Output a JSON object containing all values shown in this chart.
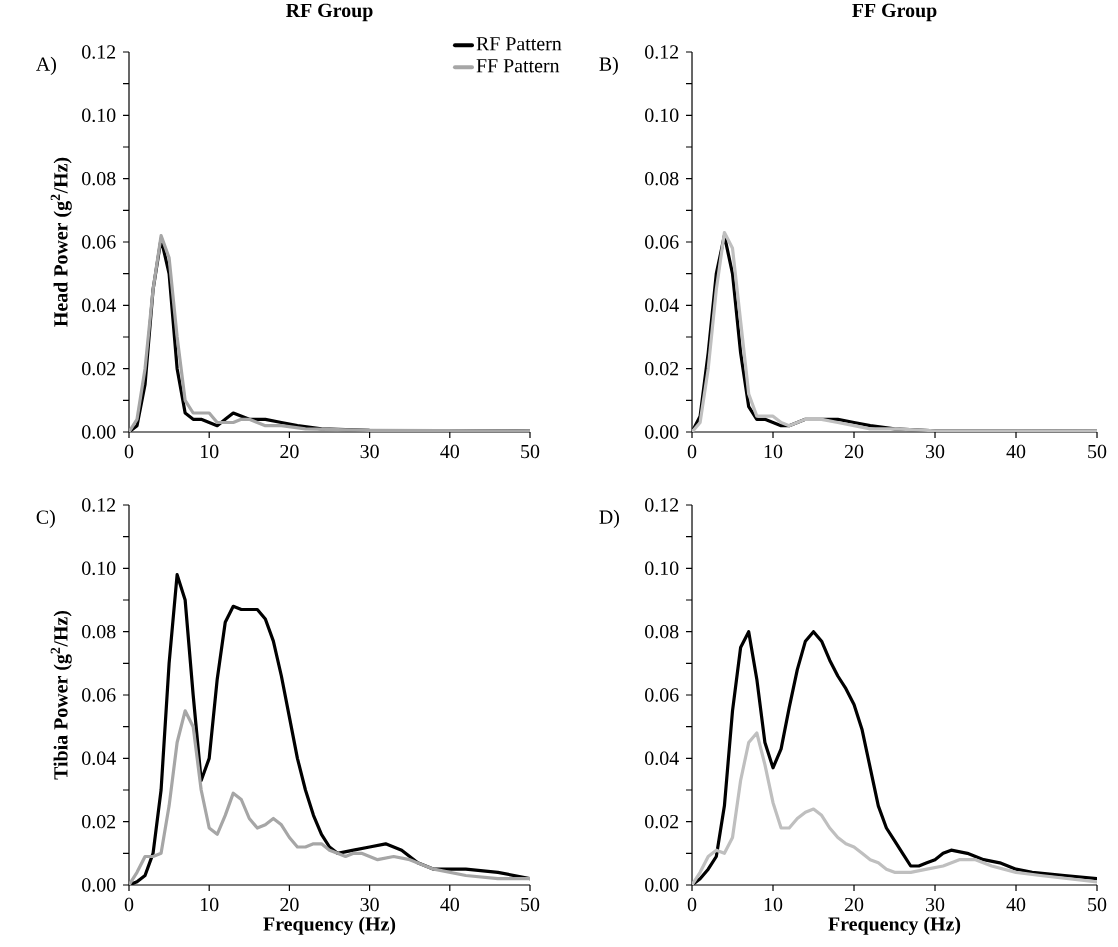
{
  "chart_data": [
    {
      "type": "line",
      "title": "RF Group",
      "ylabel": "Head Power (g$^{2}$/Hz)",
      "annotations": [
        "A)"
      ],
      "legend": "top right",
      "xlim": [
        0,
        50
      ],
      "xticks": [
        0,
        10,
        20,
        30,
        40,
        50
      ],
      "ylim": [
        0,
        0.12
      ],
      "yticks": [
        {
          "value": 0,
          "label": "0.00"
        },
        {
          "value": 0.01,
          "label": null
        },
        {
          "value": 0.02,
          "label": "0.02"
        },
        {
          "value": 0.03,
          "label": null
        },
        {
          "value": 0.04,
          "label": "0.04"
        },
        {
          "value": 0.05,
          "label": null
        },
        {
          "value": 0.06,
          "label": "0.06"
        },
        {
          "value": 0.07,
          "label": null
        },
        {
          "value": 0.08,
          "label": "0.08"
        },
        {
          "value": 0.09,
          "label": null
        },
        {
          "value": 0.1,
          "label": "0.10"
        },
        {
          "value": 0.11,
          "label": null
        },
        {
          "value": 0.12,
          "label": "0.12"
        }
      ],
      "series": [
        {
          "name": "RF Pattern",
          "color": "#000000",
          "x": [
            0,
            1,
            2,
            3,
            4,
            5,
            6,
            7,
            8,
            9,
            10,
            11,
            12,
            13,
            14,
            15,
            17,
            19,
            21,
            24,
            30,
            50
          ],
          "values": [
            0,
            0.002,
            0.015,
            0.045,
            0.061,
            0.05,
            0.02,
            0.006,
            0.004,
            0.004,
            0.003,
            0.002,
            0.004,
            0.006,
            0.005,
            0.004,
            0.004,
            0.003,
            0.002,
            0.001,
            0.0005,
            0.0003
          ]
        },
        {
          "name": "FF Pattern",
          "color": "#a6a6a6",
          "x": [
            0,
            1,
            2,
            3,
            4,
            5,
            6,
            7,
            8,
            9,
            10,
            11,
            12,
            13,
            14,
            15,
            16,
            17,
            19,
            22,
            30,
            50
          ],
          "values": [
            0,
            0.004,
            0.02,
            0.045,
            0.062,
            0.055,
            0.03,
            0.01,
            0.006,
            0.006,
            0.006,
            0.003,
            0.003,
            0.003,
            0.004,
            0.004,
            0.003,
            0.002,
            0.002,
            0.001,
            0.0005,
            0.0003
          ]
        }
      ]
    },
    {
      "type": "line",
      "title": "FF Group",
      "annotations": [
        "B)"
      ],
      "xlim": [
        0,
        50
      ],
      "xticks": [
        0,
        10,
        20,
        30,
        40,
        50
      ],
      "ylim": [
        0,
        0.12
      ],
      "yticks": [
        {
          "value": 0,
          "label": "0.00"
        },
        {
          "value": 0.01,
          "label": null
        },
        {
          "value": 0.02,
          "label": "0.02"
        },
        {
          "value": 0.03,
          "label": null
        },
        {
          "value": 0.04,
          "label": "0.04"
        },
        {
          "value": 0.05,
          "label": null
        },
        {
          "value": 0.06,
          "label": "0.06"
        },
        {
          "value": 0.07,
          "label": null
        },
        {
          "value": 0.08,
          "label": "0.08"
        },
        {
          "value": 0.09,
          "label": null
        },
        {
          "value": 0.1,
          "label": "0.10"
        },
        {
          "value": 0.11,
          "label": null
        },
        {
          "value": 0.12,
          "label": "0.12"
        }
      ],
      "series": [
        {
          "color": "#000000",
          "x": [
            0,
            1,
            2,
            3,
            4,
            5,
            6,
            7,
            8,
            9,
            10,
            11,
            12,
            13,
            14,
            16,
            18,
            20,
            22,
            25,
            30,
            50
          ],
          "values": [
            0,
            0.005,
            0.025,
            0.05,
            0.062,
            0.05,
            0.025,
            0.008,
            0.004,
            0.004,
            0.003,
            0.002,
            0.002,
            0.003,
            0.004,
            0.004,
            0.004,
            0.003,
            0.002,
            0.001,
            0.0004,
            0.0003
          ]
        },
        {
          "color": "#bfbfbf",
          "x": [
            0,
            1,
            2,
            3,
            4,
            5,
            6,
            7,
            8,
            9,
            10,
            11,
            12,
            13,
            14,
            16,
            18,
            20,
            22,
            25,
            30,
            50
          ],
          "values": [
            0,
            0.003,
            0.02,
            0.045,
            0.063,
            0.058,
            0.035,
            0.012,
            0.005,
            0.005,
            0.005,
            0.003,
            0.002,
            0.003,
            0.004,
            0.004,
            0.003,
            0.002,
            0.001,
            0.001,
            0.0004,
            0.0003
          ]
        }
      ]
    },
    {
      "type": "line",
      "xlabel": "Frequency (Hz)",
      "ylabel": "Tibia Power (g$^{2}$/Hz)",
      "annotations": [
        "C)"
      ],
      "xlim": [
        0,
        50
      ],
      "xticks": [
        0,
        10,
        20,
        30,
        40,
        50
      ],
      "ylim": [
        0,
        0.12
      ],
      "yticks": [
        {
          "value": 0,
          "label": "0.00"
        },
        {
          "value": 0.01,
          "label": null
        },
        {
          "value": 0.02,
          "label": "0.02"
        },
        {
          "value": 0.03,
          "label": null
        },
        {
          "value": 0.04,
          "label": "0.04"
        },
        {
          "value": 0.05,
          "label": null
        },
        {
          "value": 0.06,
          "label": "0.06"
        },
        {
          "value": 0.07,
          "label": null
        },
        {
          "value": 0.08,
          "label": "0.08"
        },
        {
          "value": 0.09,
          "label": null
        },
        {
          "value": 0.1,
          "label": "0.10"
        },
        {
          "value": 0.11,
          "label": null
        },
        {
          "value": 0.12,
          "label": "0.12"
        }
      ],
      "series": [
        {
          "color": "#000000",
          "x": [
            0,
            1,
            2,
            3,
            4,
            5,
            6,
            7,
            8,
            9,
            10,
            11,
            12,
            13,
            14,
            16,
            17,
            18,
            19,
            20,
            21,
            22,
            23,
            24,
            25,
            26,
            28,
            30,
            32,
            34,
            36,
            38,
            40,
            42,
            46,
            50
          ],
          "values": [
            0,
            0.001,
            0.003,
            0.01,
            0.03,
            0.07,
            0.098,
            0.09,
            0.06,
            0.033,
            0.04,
            0.065,
            0.083,
            0.088,
            0.087,
            0.087,
            0.084,
            0.077,
            0.066,
            0.053,
            0.04,
            0.03,
            0.022,
            0.016,
            0.012,
            0.01,
            0.011,
            0.012,
            0.013,
            0.011,
            0.007,
            0.005,
            0.005,
            0.005,
            0.004,
            0.002
          ]
        },
        {
          "color": "#a6a6a6",
          "x": [
            0,
            1,
            2,
            3,
            4,
            5,
            6,
            7,
            8,
            9,
            10,
            11,
            12,
            13,
            14,
            15,
            16,
            17,
            18,
            19,
            20,
            21,
            22,
            23,
            24,
            25,
            26,
            27,
            28,
            29,
            30,
            31,
            33,
            35,
            38,
            42,
            46,
            50
          ],
          "values": [
            0,
            0.004,
            0.009,
            0.009,
            0.01,
            0.025,
            0.045,
            0.055,
            0.05,
            0.03,
            0.018,
            0.016,
            0.022,
            0.029,
            0.027,
            0.021,
            0.018,
            0.019,
            0.021,
            0.019,
            0.015,
            0.012,
            0.012,
            0.013,
            0.013,
            0.011,
            0.01,
            0.009,
            0.01,
            0.01,
            0.009,
            0.008,
            0.009,
            0.008,
            0.005,
            0.003,
            0.002,
            0.002
          ]
        }
      ]
    },
    {
      "type": "line",
      "xlabel": "Frequency (Hz)",
      "annotations": [
        "D)"
      ],
      "xlim": [
        0,
        50
      ],
      "xticks": [
        0,
        10,
        20,
        30,
        40,
        50
      ],
      "ylim": [
        0,
        0.12
      ],
      "yticks": [
        {
          "value": 0,
          "label": "0.00"
        },
        {
          "value": 0.01,
          "label": null
        },
        {
          "value": 0.02,
          "label": "0.02"
        },
        {
          "value": 0.03,
          "label": null
        },
        {
          "value": 0.04,
          "label": "0.04"
        },
        {
          "value": 0.05,
          "label": null
        },
        {
          "value": 0.06,
          "label": "0.06"
        },
        {
          "value": 0.07,
          "label": null
        },
        {
          "value": 0.08,
          "label": "0.08"
        },
        {
          "value": 0.09,
          "label": null
        },
        {
          "value": 0.1,
          "label": "0.10"
        },
        {
          "value": 0.11,
          "label": null
        },
        {
          "value": 0.12,
          "label": "0.12"
        }
      ],
      "series": [
        {
          "color": "#000000",
          "x": [
            0,
            1,
            2,
            3,
            4,
            5,
            6,
            7,
            8,
            9,
            10,
            11,
            12,
            13,
            14,
            15,
            16,
            17,
            18,
            19,
            20,
            21,
            22,
            23,
            24,
            25,
            26,
            27,
            28,
            29,
            30,
            31,
            32,
            34,
            36,
            38,
            40,
            42,
            46,
            50
          ],
          "values": [
            0,
            0.002,
            0.005,
            0.009,
            0.025,
            0.055,
            0.075,
            0.08,
            0.065,
            0.045,
            0.037,
            0.043,
            0.056,
            0.068,
            0.077,
            0.08,
            0.077,
            0.071,
            0.066,
            0.062,
            0.057,
            0.049,
            0.037,
            0.025,
            0.018,
            0.014,
            0.01,
            0.006,
            0.006,
            0.007,
            0.008,
            0.01,
            0.011,
            0.01,
            0.008,
            0.007,
            0.005,
            0.004,
            0.003,
            0.002
          ]
        },
        {
          "color": "#bfbfbf",
          "x": [
            0,
            1,
            2,
            3,
            4,
            5,
            6,
            7,
            8,
            9,
            10,
            11,
            12,
            13,
            14,
            15,
            16,
            17,
            18,
            19,
            20,
            21,
            22,
            23,
            24,
            25,
            27,
            29,
            31,
            33,
            35,
            37,
            40,
            43,
            50
          ],
          "values": [
            0,
            0.004,
            0.009,
            0.011,
            0.01,
            0.015,
            0.033,
            0.045,
            0.048,
            0.038,
            0.026,
            0.018,
            0.018,
            0.021,
            0.023,
            0.024,
            0.022,
            0.018,
            0.015,
            0.013,
            0.012,
            0.01,
            0.008,
            0.007,
            0.005,
            0.004,
            0.004,
            0.005,
            0.006,
            0.008,
            0.008,
            0.006,
            0.004,
            0.003,
            0.001
          ]
        }
      ]
    }
  ]
}
